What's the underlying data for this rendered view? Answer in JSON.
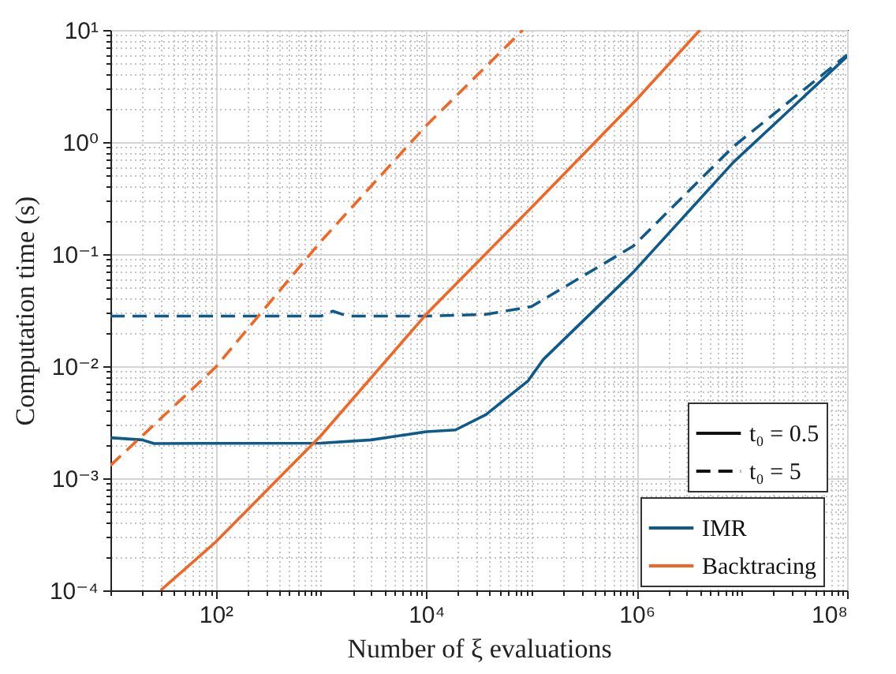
{
  "chart_data": {
    "type": "line",
    "xlabel": "Number of ξ evaluations",
    "ylabel": "Computation time (s)",
    "log": "xy",
    "grid": true,
    "legend": "bottom right",
    "xlim": [
      10,
      100000000
    ],
    "ylim": [
      0.0001,
      10
    ],
    "xticks": [
      {
        "value": 100,
        "label": "10²"
      },
      {
        "value": 10000,
        "label": "10⁴"
      },
      {
        "value": 1000000,
        "label": "10⁶"
      },
      {
        "value": 100000000,
        "label": "10⁸"
      }
    ],
    "yticks": [
      {
        "value": 0.0001,
        "label": "10⁻⁴"
      },
      {
        "value": 0.001,
        "label": "10⁻³"
      },
      {
        "value": 0.01,
        "label": "10⁻²"
      },
      {
        "value": 0.1,
        "label": "10⁻¹"
      },
      {
        "value": 1,
        "label": "10⁰"
      },
      {
        "value": 10,
        "label": "10¹"
      }
    ],
    "annotations": [
      "t₀ = 0.5",
      "t₀ = 5"
    ],
    "series": [
      {
        "name": "IMR",
        "color": "#0e5a8a",
        "line_style": "solid",
        "x": [
          10,
          20,
          26,
          100,
          1000,
          3000,
          10000,
          19000,
          37000,
          93000,
          130000,
          930000,
          8300000,
          100000000
        ],
        "values": [
          0.0023,
          0.0022,
          0.00204,
          0.00205,
          0.00206,
          0.0022,
          0.0026,
          0.0027,
          0.0037,
          0.0074,
          0.0115,
          0.069,
          0.66,
          5.8
        ]
      },
      {
        "color": "#0e5a8a",
        "line_style": "dashed",
        "x": [
          10,
          100,
          1000,
          1300,
          1800,
          10000,
          37000,
          100000,
          200000,
          930000,
          8300000,
          100000000
        ],
        "values": [
          0.028,
          0.028,
          0.028,
          0.031,
          0.028,
          0.028,
          0.029,
          0.034,
          0.05,
          0.118,
          0.91,
          6
        ]
      },
      {
        "name": "Backtracing",
        "color": "#f26522",
        "line_style": "solid",
        "x": [
          30,
          100,
          1000,
          10000,
          100000,
          1000000,
          4000000
        ],
        "values": [
          0.0001,
          0.00027,
          0.0024,
          0.029,
          0.26,
          2.4,
          10
        ]
      },
      {
        "color": "#f26522",
        "line_style": "dashed",
        "x": [
          10,
          100,
          1000,
          10000,
          83000
        ],
        "values": [
          0.0013,
          0.0098,
          0.13,
          1.4,
          10
        ]
      }
    ]
  }
}
